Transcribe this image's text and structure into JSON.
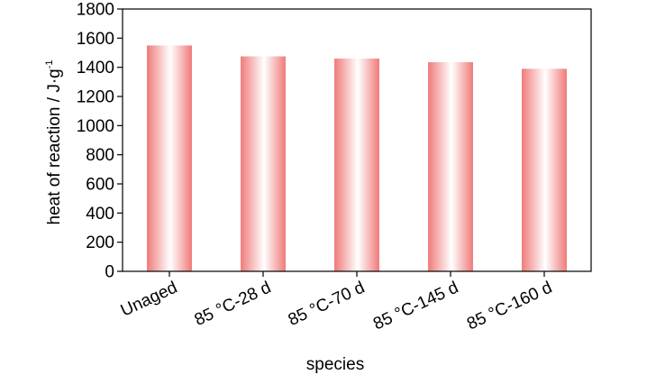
{
  "chart_data": {
    "type": "bar",
    "categories": [
      "Unaged",
      "85 °C-28 d",
      "85 °C-70 d",
      "85 °C-145 d",
      "85 °C-160 d"
    ],
    "values": [
      1550,
      1475,
      1460,
      1435,
      1390
    ],
    "xlabel": "species",
    "ylabel_main": "heat of reaction / J·g",
    "ylabel_sup": "-1",
    "ylim": [
      0,
      1800
    ],
    "yticks": [
      0,
      200,
      400,
      600,
      800,
      1000,
      1200,
      1400,
      1600,
      1800
    ],
    "grid": false,
    "legend": "none",
    "bar_color_edge": "#f07a7a",
    "bar_color_center": "#ffffff"
  }
}
